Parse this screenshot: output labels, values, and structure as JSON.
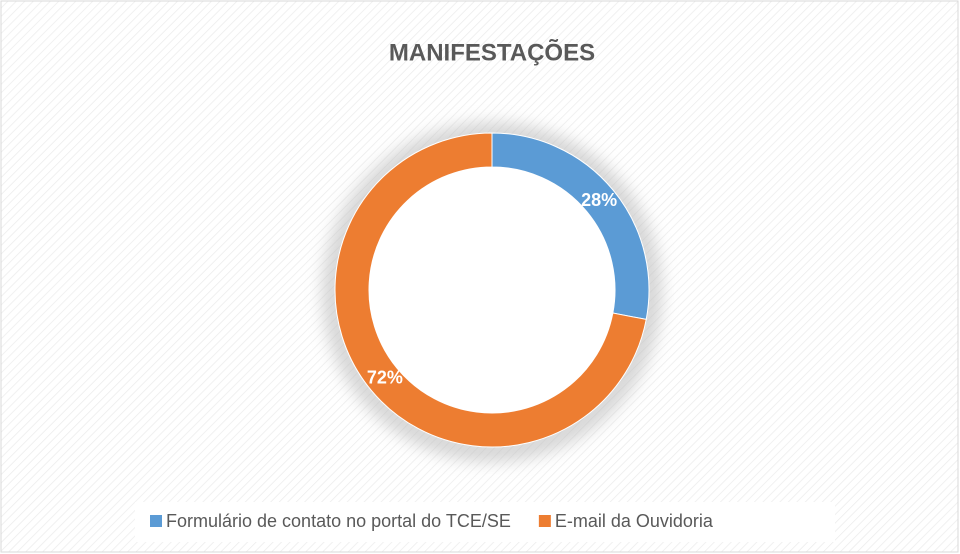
{
  "chart_data": {
    "type": "donut",
    "title": "MANIFESTAÇÕES",
    "categories": [
      "Formulário de contato no portal do TCE/SE",
      "E-mail da Ouvidoria"
    ],
    "values": [
      28,
      72
    ],
    "value_labels": [
      "28%",
      "72%"
    ],
    "colors": [
      "#5b9bd5",
      "#ed7d31"
    ],
    "legend": "bottom"
  }
}
